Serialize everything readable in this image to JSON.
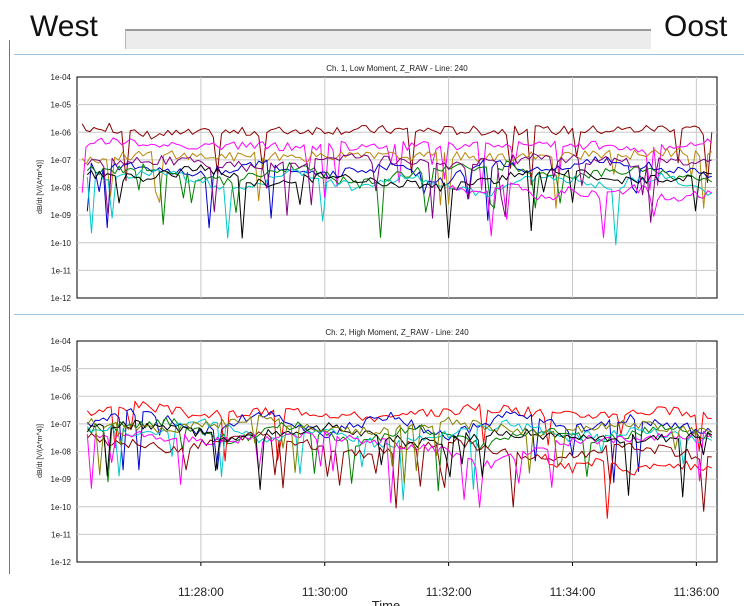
{
  "header": {
    "left_label": "West",
    "right_label": "Oost"
  },
  "colors": {
    "grid": "#c8c8c8",
    "plot_border": "#000000",
    "series_palette": [
      "#8b0000",
      "#ff00ff",
      "#0000cd",
      "#008000",
      "#00c8c8",
      "#ff0000",
      "#000000",
      "#b8860b",
      "#808000",
      "#800080",
      "#4169e1",
      "#2e8b57"
    ]
  },
  "chart_data": [
    {
      "type": "line",
      "title": "Ch. 1, Low Moment, Z_RAW - Line: 240",
      "ylabel": "dB/dt [V/(A*m^4)]",
      "xlabel": "",
      "y_scale": "log",
      "ylim": [
        "1e-12",
        "1e-04"
      ],
      "y_ticks": [
        "1e-04",
        "1e-05",
        "1e-06",
        "1e-07",
        "1e-08",
        "1e-09",
        "1e-10",
        "1e-11",
        "1e-12"
      ],
      "x_ticks": [
        "11:28:00",
        "11:30:00",
        "11:32:00",
        "11:34:00",
        "11:36:00"
      ],
      "xlim": [
        "11:26:00",
        "11:36:20"
      ],
      "grid": true,
      "series": [
        {
          "color": "#8b0000",
          "time": [
            "11:26:05",
            "11:26:35",
            "11:27:00",
            "11:30:00",
            "11:33:00",
            "11:35:00",
            "11:35:50",
            "11:36:15"
          ],
          "log10": [
            -5.8,
            -5.85,
            -6.1,
            -5.9,
            -5.95,
            -5.9,
            -5.8,
            -6.0
          ]
        },
        {
          "color": "#ff00ff",
          "time": [
            "11:26:05",
            "11:26:35",
            "11:27:00",
            "11:29:00",
            "11:31:00",
            "11:33:00",
            "11:34:30",
            "11:35:00",
            "11:35:30",
            "11:36:15"
          ],
          "log10": [
            -6.4,
            -6.3,
            -6.4,
            -6.5,
            -6.5,
            -6.45,
            -6.5,
            -6.7,
            -6.5,
            -6.4
          ]
        },
        {
          "color": "#b8860b",
          "time": [
            "11:26:05",
            "11:27:00",
            "11:29:00",
            "11:31:00",
            "11:33:00",
            "11:35:00",
            "11:36:15"
          ],
          "log10": [
            -7.0,
            -6.8,
            -6.9,
            -6.85,
            -6.9,
            -6.8,
            -6.7
          ]
        },
        {
          "color": "#0000cd",
          "time": [
            "11:26:10",
            "11:27:00",
            "11:28:00",
            "11:29:00",
            "11:30:00",
            "11:31:00",
            "11:32:00",
            "11:32:30",
            "11:33:30",
            "11:34:30",
            "11:35:30",
            "11:36:15"
          ],
          "log10": [
            -7.3,
            -7.2,
            -7.5,
            -7.1,
            -7.6,
            -7.2,
            -7.8,
            -7.1,
            -7.4,
            -7.0,
            -7.3,
            -7.6
          ]
        },
        {
          "color": "#008000",
          "time": [
            "11:26:10",
            "11:27:00",
            "11:28:30",
            "11:29:30",
            "11:30:30",
            "11:31:30",
            "11:33:00",
            "11:34:00",
            "11:35:00",
            "11:36:15"
          ],
          "log10": [
            -7.4,
            -7.3,
            -7.8,
            -7.2,
            -7.9,
            -7.4,
            -7.2,
            -7.7,
            -7.3,
            -7.8
          ]
        },
        {
          "color": "#00c8c8",
          "time": [
            "11:26:10",
            "11:27:30",
            "11:28:30",
            "11:29:30",
            "11:30:30",
            "11:31:30",
            "11:32:30",
            "11:33:30",
            "11:34:30",
            "11:35:30",
            "11:36:15"
          ],
          "log10": [
            -7.6,
            -7.5,
            -8.1,
            -7.4,
            -8.0,
            -7.6,
            -8.3,
            -7.5,
            -8.0,
            -7.6,
            -8.2
          ]
        },
        {
          "color": "#000000",
          "time": [
            "11:26:10",
            "11:27:00",
            "11:28:00",
            "11:29:00",
            "11:30:00",
            "11:31:00",
            "11:32:00",
            "11:33:00",
            "11:34:00",
            "11:35:00",
            "11:36:15"
          ],
          "log10": [
            -7.5,
            -7.7,
            -7.3,
            -7.9,
            -7.6,
            -7.8,
            -8.0,
            -7.6,
            -7.4,
            -7.8,
            -7.5
          ]
        },
        {
          "color": "#ff00ff",
          "time": [
            "11:32:00",
            "11:32:30",
            "11:33:00",
            "11:33:30",
            "11:34:00",
            "11:34:30",
            "11:35:00",
            "11:35:30",
            "11:36:15"
          ],
          "log10": [
            -8.0,
            -8.3,
            -7.9,
            -8.4,
            -8.1,
            -8.3,
            -8.0,
            -8.4,
            -8.2
          ]
        },
        {
          "color": "#800080",
          "time": [
            "11:26:10",
            "11:27:30",
            "11:29:00",
            "11:30:30",
            "11:32:00",
            "11:33:30",
            "11:35:00",
            "11:36:15"
          ],
          "log10": [
            -7.1,
            -7.0,
            -7.3,
            -6.9,
            -7.2,
            -6.9,
            -7.1,
            -7.0
          ]
        }
      ]
    },
    {
      "type": "line",
      "title": "Ch. 2, High Moment, Z_RAW - Line: 240",
      "ylabel": "dB/dt [V/(A*m^4)]",
      "xlabel": "Time",
      "y_scale": "log",
      "ylim": [
        "1e-12",
        "1e-04"
      ],
      "y_ticks": [
        "1e-04",
        "1e-05",
        "1e-06",
        "1e-07",
        "1e-08",
        "1e-09",
        "1e-10",
        "1e-11",
        "1e-12"
      ],
      "x_ticks": [
        "11:28:00",
        "11:30:00",
        "11:32:00",
        "11:34:00",
        "11:36:00"
      ],
      "xlim": [
        "11:26:00",
        "11:36:20"
      ],
      "grid": true,
      "series": [
        {
          "color": "#ff0000",
          "time": [
            "11:26:10",
            "11:27:00",
            "11:28:00",
            "11:29:30",
            "11:31:00",
            "11:32:30",
            "11:34:00",
            "11:35:30",
            "11:36:15"
          ],
          "log10": [
            -6.6,
            -6.3,
            -6.7,
            -6.5,
            -6.8,
            -6.4,
            -6.7,
            -6.5,
            -6.8
          ]
        },
        {
          "color": "#0000cd",
          "time": [
            "11:26:10",
            "11:27:00",
            "11:28:00",
            "11:29:00",
            "11:30:00",
            "11:31:00",
            "11:32:00",
            "11:33:00",
            "11:34:00",
            "11:35:00",
            "11:36:15"
          ],
          "log10": [
            -7.0,
            -6.5,
            -7.3,
            -6.6,
            -7.4,
            -6.7,
            -7.5,
            -6.6,
            -7.2,
            -6.8,
            -7.3
          ]
        },
        {
          "color": "#008000",
          "time": [
            "11:26:10",
            "11:27:30",
            "11:28:30",
            "11:29:30",
            "11:30:30",
            "11:31:30",
            "11:32:30",
            "11:33:30",
            "11:34:30",
            "11:35:30",
            "11:36:15"
          ],
          "log10": [
            -7.2,
            -6.9,
            -7.6,
            -7.0,
            -7.7,
            -7.1,
            -7.8,
            -7.2,
            -7.6,
            -7.1,
            -7.5
          ]
        },
        {
          "color": "#00c8c8",
          "time": [
            "11:26:10",
            "11:27:00",
            "11:28:00",
            "11:29:00",
            "11:30:00",
            "11:31:00",
            "11:32:00",
            "11:33:00",
            "11:34:00",
            "11:35:00",
            "11:36:15"
          ],
          "log10": [
            -7.1,
            -7.4,
            -6.9,
            -7.6,
            -7.2,
            -7.8,
            -7.4,
            -7.0,
            -7.5,
            -7.2,
            -7.6
          ]
        },
        {
          "color": "#8b0000",
          "time": [
            "11:26:10",
            "11:27:30",
            "11:29:00",
            "11:30:30",
            "11:32:00",
            "11:33:30",
            "11:35:00",
            "11:36:15"
          ],
          "log10": [
            -7.5,
            -7.9,
            -7.4,
            -8.1,
            -7.6,
            -8.3,
            -7.8,
            -8.2
          ]
        },
        {
          "color": "#ff0000",
          "time": [
            "11:33:30",
            "11:34:00",
            "11:34:30",
            "11:35:00",
            "11:35:30",
            "11:36:15"
          ],
          "log10": [
            -8.2,
            -8.6,
            -8.3,
            -8.7,
            -8.4,
            -8.6
          ]
        },
        {
          "color": "#ff00ff",
          "time": [
            "11:26:10",
            "11:28:00",
            "11:30:00",
            "11:32:00",
            "11:32:30",
            "11:33:00",
            "11:34:00",
            "11:36:15"
          ],
          "log10": [
            -7.3,
            -7.6,
            -7.4,
            -8.0,
            -8.6,
            -8.2,
            -7.6,
            -7.4
          ]
        },
        {
          "color": "#000000",
          "time": [
            "11:26:10",
            "11:27:00",
            "11:28:30",
            "11:30:00",
            "11:31:30",
            "11:33:00",
            "11:34:30",
            "11:36:15"
          ],
          "log10": [
            -7.2,
            -7.0,
            -7.5,
            -7.1,
            -7.7,
            -7.3,
            -7.6,
            -7.4
          ]
        },
        {
          "color": "#808000",
          "time": [
            "11:26:10",
            "11:27:30",
            "11:29:00",
            "11:30:30",
            "11:32:00",
            "11:33:30",
            "11:35:00",
            "11:36:15"
          ],
          "log10": [
            -6.9,
            -7.2,
            -6.8,
            -7.3,
            -6.9,
            -7.4,
            -7.0,
            -7.3
          ]
        }
      ]
    }
  ]
}
